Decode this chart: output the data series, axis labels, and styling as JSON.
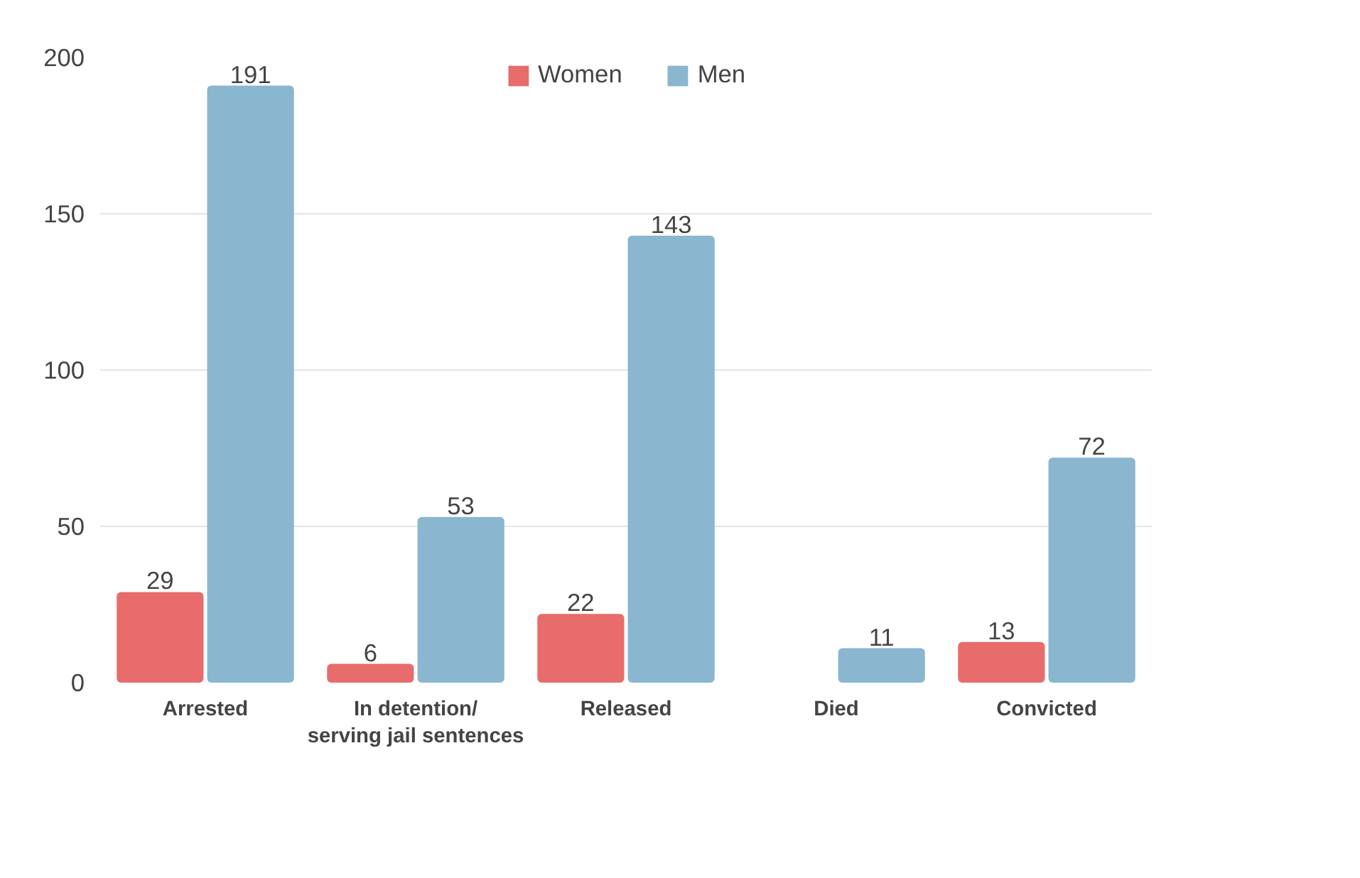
{
  "chart_data": {
    "type": "bar",
    "categories": [
      "Arrested",
      "In detention/\nserving jail sentences",
      "Released",
      "Died",
      "Convicted"
    ],
    "series": [
      {
        "name": "Women",
        "color": "#e86c6c",
        "values": [
          29,
          6,
          22,
          null,
          13
        ]
      },
      {
        "name": "Men",
        "color": "#8ab6d0",
        "values": [
          191,
          53,
          143,
          11,
          72
        ]
      }
    ],
    "ylim": [
      0,
      200
    ],
    "yticks": [
      0,
      50,
      100,
      150,
      200
    ],
    "grid": "y",
    "legend": "top",
    "data_labels": true
  }
}
